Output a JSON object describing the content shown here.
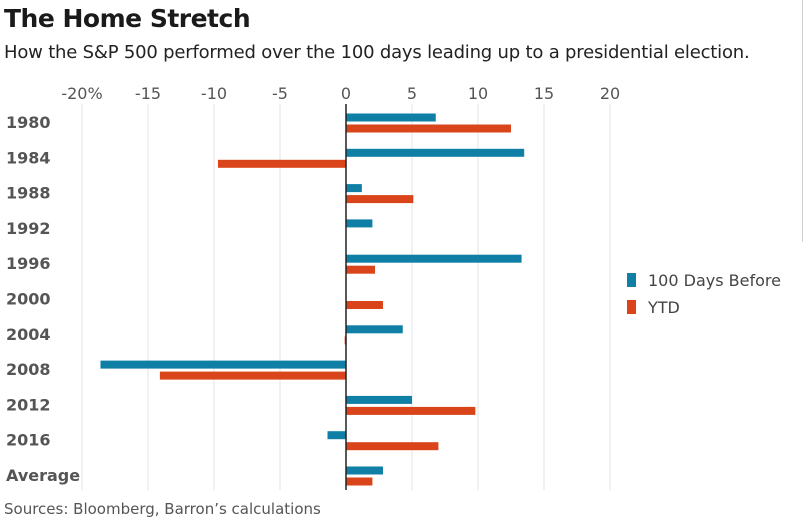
{
  "title": "The Home Stretch",
  "subtitle": "How the S&P 500 performed over the 100 days leading up to a presidential election.",
  "source": "Sources: Bloomberg, Barron’s calculations",
  "colors": {
    "series_100_days": "#0f7fa6",
    "series_ytd": "#d9441a",
    "grid": "#e3e3e3",
    "zero_axis": "#222222"
  },
  "chart_data": {
    "type": "bar",
    "orientation": "horizontal",
    "categories": [
      "1980",
      "1984",
      "1988",
      "1992",
      "1996",
      "2000",
      "2004",
      "2008",
      "2012",
      "2016",
      "Average"
    ],
    "series": [
      {
        "name": "100 Days Before",
        "values": [
          6.8,
          13.5,
          1.2,
          2.0,
          13.3,
          0.0,
          4.3,
          -18.6,
          5.0,
          -1.4,
          2.8
        ]
      },
      {
        "name": "YTD",
        "values": [
          12.5,
          -9.7,
          5.1,
          0.0,
          2.2,
          2.8,
          -0.1,
          -14.1,
          9.8,
          7.0,
          2.0
        ]
      }
    ],
    "xticks": [
      -20,
      -15,
      -10,
      -5,
      0,
      5,
      10,
      15,
      20
    ],
    "xtick_labels": [
      "-20%",
      "-15",
      "-10",
      "-5",
      "0",
      "5",
      "10",
      "15",
      "20"
    ],
    "xlim": [
      -20,
      20
    ],
    "xlabel": "",
    "ylabel": "",
    "grid": true,
    "legend": "right"
  }
}
